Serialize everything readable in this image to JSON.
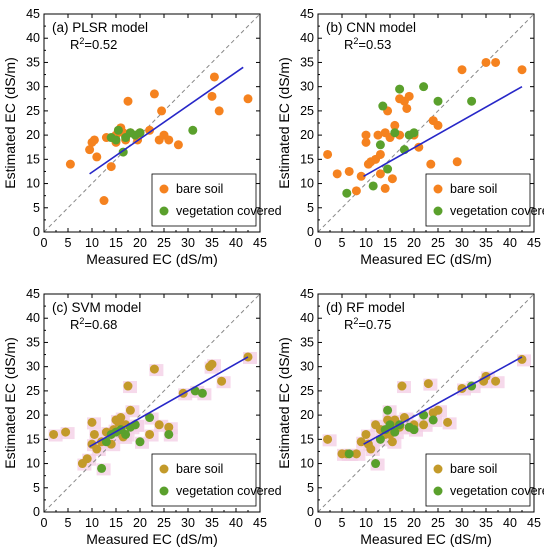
{
  "colors": {
    "bare_soil_orange": "#f5821f",
    "bare_soil_olive": "#c39a2a",
    "vegetation": "#5aa02c",
    "fit_line": "#2727c8",
    "identity_line": "#888888",
    "shadow": "#f4cfe6"
  },
  "chart_data": [
    {
      "type": "scatter",
      "title": "(a) PLSR model",
      "r2_prefix": "R",
      "r2_sup": "2",
      "r2_value": "=0.52",
      "xlabel": "Measured EC (dS/m)",
      "ylabel": "Estimated EC (dS/m)",
      "xlim": [
        0,
        45
      ],
      "ylim": [
        0,
        45
      ],
      "xticks": [
        "0",
        "5",
        "10",
        "15",
        "20",
        "25",
        "30",
        "35",
        "40",
        "45"
      ],
      "yticks": [
        "0",
        "5",
        "10",
        "15",
        "20",
        "25",
        "30",
        "35",
        "40",
        "45"
      ],
      "grid": false,
      "legend_position": "bottom-right",
      "legend": [
        "bare soil",
        "vegetation covered"
      ],
      "bare_color": "#f5821f",
      "shadow": false,
      "identity_line": true,
      "fit_line": {
        "x": [
          9.5,
          41.5
        ],
        "y": [
          12.0,
          34.0
        ]
      },
      "series": [
        {
          "name": "bare soil",
          "x": [
            5.5,
            9.5,
            10,
            10.5,
            11,
            12.5,
            13,
            14,
            15,
            15,
            15.5,
            16,
            16.5,
            17,
            17.5,
            18,
            19.5,
            20,
            22,
            23,
            24,
            24.5,
            25,
            26,
            28,
            35,
            35.5,
            36.5,
            42.5
          ],
          "y": [
            14,
            17,
            18.5,
            19,
            15.5,
            6.5,
            19.5,
            13.5,
            18.5,
            20,
            21,
            21.5,
            20.5,
            19,
            27,
            20.5,
            19,
            20.5,
            21,
            28.5,
            19,
            25,
            20,
            19,
            18,
            28,
            32,
            25,
            27.5
          ]
        },
        {
          "name": "vegetation covered",
          "x": [
            14,
            15,
            15.5,
            16.5,
            17,
            18,
            19,
            20,
            31
          ],
          "y": [
            19.5,
            19,
            21,
            16.5,
            19.5,
            20.5,
            20,
            20.5,
            21
          ]
        }
      ]
    },
    {
      "type": "scatter",
      "title": "(b) CNN model",
      "r2_prefix": "R",
      "r2_sup": "2",
      "r2_value": "=0.53",
      "xlabel": "Measured EC (dS/m)",
      "ylabel": "Estimated EC (dS/m)",
      "xlim": [
        0,
        45
      ],
      "ylim": [
        0,
        45
      ],
      "xticks": [
        "0",
        "5",
        "10",
        "15",
        "20",
        "25",
        "30",
        "35",
        "40",
        "45"
      ],
      "yticks": [
        "0",
        "5",
        "10",
        "15",
        "20",
        "25",
        "30",
        "35",
        "40",
        "45"
      ],
      "grid": false,
      "legend_position": "bottom-right",
      "legend": [
        "bare soil",
        "vegetation covered"
      ],
      "bare_color": "#f5821f",
      "shadow": false,
      "identity_line": true,
      "fit_line": {
        "x": [
          9.5,
          42.5
        ],
        "y": [
          11.5,
          30.0
        ]
      },
      "series": [
        {
          "name": "bare soil",
          "x": [
            2,
            4,
            6.5,
            8,
            9,
            10,
            10,
            10.5,
            11,
            12,
            12.5,
            13,
            13,
            14,
            14,
            14.5,
            15,
            15.5,
            16,
            17,
            17,
            18,
            18.5,
            19,
            20,
            21,
            23.5,
            24,
            25,
            29,
            30,
            35,
            37,
            42.5
          ],
          "y": [
            16,
            12,
            12.5,
            8.5,
            11.5,
            18.5,
            20,
            14,
            14.5,
            15,
            20,
            12,
            16,
            9,
            20.5,
            25,
            19.5,
            11,
            22,
            20,
            27.5,
            27,
            25.5,
            28,
            20,
            17.5,
            14,
            23,
            22,
            14.5,
            33.5,
            35,
            35,
            33.5
          ]
        },
        {
          "name": "vegetation covered",
          "x": [
            6,
            11.5,
            13,
            13.5,
            14.5,
            16,
            17,
            18,
            19,
            20,
            22,
            25,
            32
          ],
          "y": [
            8,
            9.5,
            18,
            26,
            13,
            20.5,
            29.5,
            17,
            20,
            20.5,
            30,
            27,
            27
          ]
        }
      ]
    },
    {
      "type": "scatter",
      "title": "(c) SVM model",
      "r2_prefix": "R",
      "r2_sup": "2",
      "r2_value": "=0.68",
      "xlabel": "Measured EC (dS/m)",
      "ylabel": "Estimated EC (dS/m)",
      "xlim": [
        0,
        45
      ],
      "ylim": [
        0,
        45
      ],
      "xticks": [
        "0",
        "5",
        "10",
        "15",
        "20",
        "25",
        "30",
        "35",
        "40",
        "45"
      ],
      "yticks": [
        "0",
        "5",
        "10",
        "15",
        "20",
        "25",
        "30",
        "35",
        "40",
        "45"
      ],
      "grid": false,
      "legend_position": "bottom-right",
      "legend": [
        "bare soil",
        "vegetation covered"
      ],
      "bare_color": "#c39a2a",
      "shadow": true,
      "identity_line": true,
      "fit_line": {
        "x": [
          9.5,
          42.5
        ],
        "y": [
          13.5,
          32.0
        ]
      },
      "series": [
        {
          "name": "bare soil",
          "x": [
            2,
            4.5,
            8,
            9,
            10,
            10,
            10.5,
            11,
            12,
            13,
            14,
            14.5,
            15,
            15.5,
            16,
            16.5,
            17,
            17.5,
            18,
            19,
            22,
            23,
            24,
            26,
            29,
            34.5,
            35,
            37,
            42.5
          ],
          "y": [
            16,
            16.5,
            10,
            11,
            14,
            18.5,
            16,
            13,
            14.5,
            16.5,
            14,
            17,
            19,
            18.5,
            19.5,
            15.5,
            18,
            26,
            21,
            18,
            16,
            29.5,
            18,
            17.5,
            24.5,
            30,
            30.5,
            27,
            32
          ]
        },
        {
          "name": "vegetation covered",
          "x": [
            12,
            13,
            14,
            15,
            16,
            17,
            18,
            19,
            20,
            22,
            26,
            31.5,
            33
          ],
          "y": [
            9,
            14.5,
            16,
            16.5,
            17,
            16,
            17.5,
            18,
            14.5,
            19.5,
            16,
            25,
            24.5
          ]
        }
      ]
    },
    {
      "type": "scatter",
      "title": "(d) RF model",
      "r2_prefix": "R",
      "r2_sup": "2",
      "r2_value": "=0.75",
      "xlabel": "Measured EC (dS/m)",
      "ylabel": "Estimated EC (dS/m)",
      "xlim": [
        0,
        45
      ],
      "ylim": [
        0,
        45
      ],
      "xticks": [
        "0",
        "5",
        "10",
        "15",
        "20",
        "25",
        "30",
        "35",
        "40",
        "45"
      ],
      "yticks": [
        "0",
        "5",
        "10",
        "15",
        "20",
        "25",
        "30",
        "35",
        "40",
        "45"
      ],
      "grid": false,
      "legend_position": "bottom-right",
      "legend": [
        "bare soil",
        "vegetation covered"
      ],
      "bare_color": "#c39a2a",
      "shadow": true,
      "identity_line": true,
      "fit_line": {
        "x": [
          9.5,
          42.5
        ],
        "y": [
          14.0,
          32.0
        ]
      },
      "series": [
        {
          "name": "bare soil",
          "x": [
            2,
            5,
            6,
            8,
            9,
            10,
            10.5,
            11,
            12,
            13,
            14,
            14.5,
            15,
            15.5,
            16,
            16.5,
            17,
            17.5,
            18,
            19,
            20,
            22,
            23,
            24,
            25,
            27,
            30,
            34.5,
            35,
            37,
            42.5
          ],
          "y": [
            15,
            12,
            12,
            12,
            14.5,
            16,
            14,
            13,
            18,
            17,
            16,
            19,
            16,
            14.5,
            19,
            18,
            17.5,
            26,
            19.5,
            17.5,
            18,
            18,
            26.5,
            20.5,
            21,
            18.5,
            25.5,
            27,
            28,
            27,
            31.5
          ]
        },
        {
          "name": "vegetation covered",
          "x": [
            6.5,
            12,
            13,
            14,
            14.5,
            15,
            16,
            17,
            19,
            20,
            22,
            24,
            32
          ],
          "y": [
            12,
            10,
            15,
            17,
            21,
            18,
            16.5,
            18,
            17.5,
            17,
            20,
            19,
            26
          ]
        }
      ]
    }
  ]
}
